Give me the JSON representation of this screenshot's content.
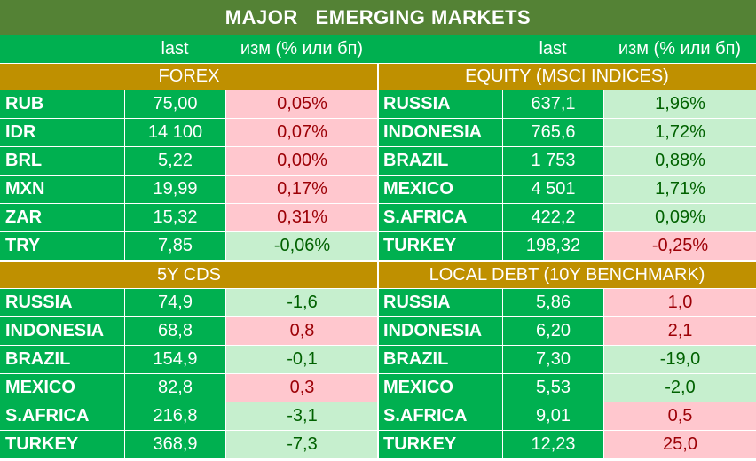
{
  "title": "MAJOR   EMERGING MARKETS",
  "header": {
    "last": "last",
    "change": "изм (% или бп)"
  },
  "colors": {
    "title_bg": "#548235",
    "row_bg": "#00b050",
    "section_bg": "#bf9000",
    "positive_bg": "#c6efce",
    "positive_text": "#006100",
    "negative_bg": "#ffc7ce",
    "negative_text": "#9c0006"
  },
  "forex": {
    "title": "FOREX",
    "rows": [
      {
        "name": "RUB",
        "last": "75,00",
        "change": "0,05%",
        "tone": "neg"
      },
      {
        "name": "IDR",
        "last": "14 100",
        "change": "0,07%",
        "tone": "neg"
      },
      {
        "name": "BRL",
        "last": "5,22",
        "change": "0,00%",
        "tone": "neg"
      },
      {
        "name": "MXN",
        "last": "19,99",
        "change": "0,17%",
        "tone": "neg"
      },
      {
        "name": "ZAR",
        "last": "15,32",
        "change": "0,31%",
        "tone": "neg"
      },
      {
        "name": "TRY",
        "last": "7,85",
        "change": "-0,06%",
        "tone": "pos"
      }
    ]
  },
  "equity": {
    "title": "EQUITY (MSCI INDICES)",
    "rows": [
      {
        "name": "RUSSIA",
        "last": "637,1",
        "change": "1,96%",
        "tone": "pos"
      },
      {
        "name": "INDONESIA",
        "last": "765,6",
        "change": "1,72%",
        "tone": "pos"
      },
      {
        "name": "BRAZIL",
        "last": "1 753",
        "change": "0,88%",
        "tone": "pos"
      },
      {
        "name": "MEXICO",
        "last": "4 501",
        "change": "1,71%",
        "tone": "pos"
      },
      {
        "name": "S.AFRICA",
        "last": "422,2",
        "change": "0,09%",
        "tone": "pos"
      },
      {
        "name": "TURKEY",
        "last": "198,32",
        "change": "-0,25%",
        "tone": "neg"
      }
    ]
  },
  "cds": {
    "title": "5Y CDS",
    "rows": [
      {
        "name": "RUSSIA",
        "last": "74,9",
        "change": "-1,6",
        "tone": "pos"
      },
      {
        "name": "INDONESIA",
        "last": "68,8",
        "change": "0,8",
        "tone": "neg"
      },
      {
        "name": "BRAZIL",
        "last": "154,9",
        "change": "-0,1",
        "tone": "pos"
      },
      {
        "name": "MEXICO",
        "last": "82,8",
        "change": "0,3",
        "tone": "neg"
      },
      {
        "name": "S.AFRICA",
        "last": "216,8",
        "change": "-3,1",
        "tone": "pos"
      },
      {
        "name": "TURKEY",
        "last": "368,9",
        "change": "-7,3",
        "tone": "pos"
      }
    ]
  },
  "debt": {
    "title": "LOCAL DEBT (10Y BENCHMARK)",
    "rows": [
      {
        "name": "RUSSIA",
        "last": "5,86",
        "change": "1,0",
        "tone": "neg"
      },
      {
        "name": "INDONESIA",
        "last": "6,20",
        "change": "2,1",
        "tone": "neg"
      },
      {
        "name": "BRAZIL",
        "last": "7,30",
        "change": "-19,0",
        "tone": "pos"
      },
      {
        "name": "MEXICO",
        "last": "5,53",
        "change": "-2,0",
        "tone": "pos"
      },
      {
        "name": "S.AFRICA",
        "last": "9,01",
        "change": "0,5",
        "tone": "neg"
      },
      {
        "name": "TURKEY",
        "last": "12,23",
        "change": "25,0",
        "tone": "neg"
      }
    ]
  }
}
